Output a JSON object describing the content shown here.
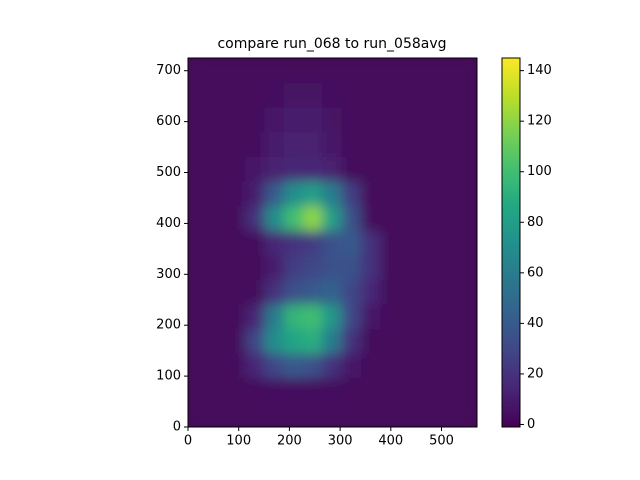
{
  "chart_data": {
    "type": "heatmap",
    "title": "compare run_068 to run_058avg",
    "xlim": [
      0,
      570
    ],
    "ylim": [
      0,
      725
    ],
    "xticks": [
      0,
      100,
      200,
      300,
      400,
      500
    ],
    "yticks": [
      0,
      100,
      200,
      300,
      400,
      500,
      600,
      700
    ],
    "colormap": "viridis",
    "clim": [
      -1,
      145
    ],
    "cticks": [
      0,
      20,
      40,
      60,
      80,
      100,
      120,
      140
    ],
    "z": [
      [
        2,
        2,
        2,
        2,
        2,
        2,
        2,
        2,
        2,
        2,
        2,
        2,
        2,
        2,
        2
      ],
      [
        2,
        2,
        2,
        2,
        4,
        4,
        4,
        4,
        2,
        2,
        2,
        2,
        2,
        2,
        2
      ],
      [
        2,
        2,
        2,
        15,
        30,
        40,
        35,
        20,
        8,
        2,
        2,
        2,
        2,
        2,
        2
      ],
      [
        2,
        2,
        2,
        30,
        70,
        85,
        90,
        60,
        20,
        2,
        2,
        2,
        2,
        2,
        2
      ],
      [
        2,
        2,
        2,
        15,
        60,
        95,
        100,
        75,
        30,
        8,
        2,
        2,
        2,
        2,
        2
      ],
      [
        2,
        2,
        2,
        2,
        20,
        35,
        40,
        45,
        30,
        15,
        2,
        2,
        2,
        2,
        2
      ],
      [
        2,
        2,
        2,
        2,
        10,
        25,
        30,
        35,
        35,
        20,
        2,
        2,
        2,
        2,
        2
      ],
      [
        2,
        2,
        2,
        2,
        15,
        20,
        25,
        35,
        40,
        20,
        2,
        2,
        2,
        2,
        2
      ],
      [
        2,
        2,
        2,
        20,
        70,
        100,
        120,
        80,
        35,
        2,
        2,
        2,
        2,
        2,
        2
      ],
      [
        2,
        2,
        2,
        10,
        40,
        70,
        80,
        60,
        25,
        2,
        2,
        2,
        2,
        2,
        2
      ],
      [
        2,
        2,
        2,
        8,
        12,
        15,
        15,
        12,
        2,
        2,
        2,
        2,
        2,
        2,
        2
      ],
      [
        2,
        2,
        2,
        2,
        10,
        12,
        12,
        8,
        2,
        2,
        2,
        2,
        2,
        2,
        2
      ],
      [
        2,
        2,
        2,
        2,
        8,
        10,
        10,
        6,
        2,
        2,
        2,
        2,
        2,
        2,
        2
      ],
      [
        2,
        2,
        2,
        2,
        4,
        6,
        6,
        4,
        2,
        2,
        2,
        2,
        2,
        2,
        2
      ],
      [
        2,
        2,
        2,
        2,
        2,
        2,
        2,
        2,
        2,
        2,
        2,
        2,
        2,
        2,
        2
      ]
    ]
  }
}
